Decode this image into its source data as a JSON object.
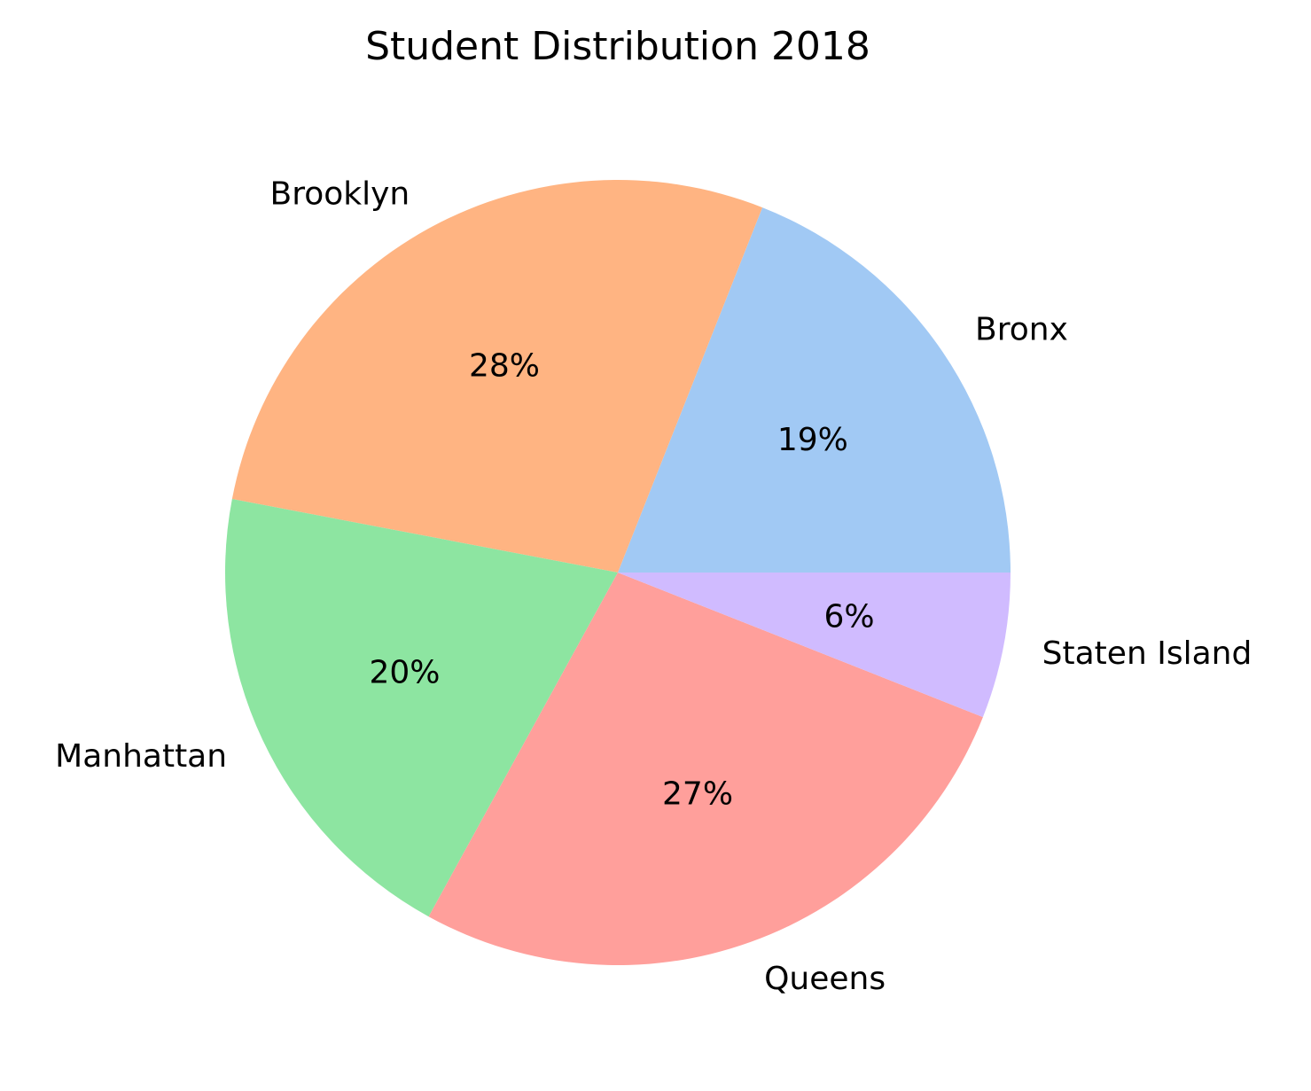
{
  "chart_data": {
    "type": "pie",
    "title": "Student Distribution 2018",
    "start_angle_deg": 0,
    "direction": "counterclockwise",
    "slices": [
      {
        "label": "Bronx",
        "value": 19,
        "percent_label": "19%",
        "color": "#a1c9f4"
      },
      {
        "label": "Brooklyn",
        "value": 28,
        "percent_label": "28%",
        "color": "#ffb482"
      },
      {
        "label": "Manhattan",
        "value": 20,
        "percent_label": "20%",
        "color": "#8de5a1"
      },
      {
        "label": "Queens",
        "value": 27,
        "percent_label": "27%",
        "color": "#ff9f9b"
      },
      {
        "label": "Staten Island",
        "value": 6,
        "percent_label": "6%",
        "color": "#d0bbff"
      }
    ]
  }
}
